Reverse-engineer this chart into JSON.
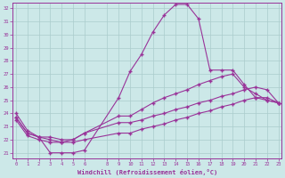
{
  "background_color": "#cce8e8",
  "grid_color": "#aacccc",
  "line_color": "#993399",
  "xlabel": "Windchill (Refroidissement éolien,°C)",
  "xlabel_color": "#993399",
  "tick_color": "#993399",
  "xticks": [
    0,
    1,
    2,
    3,
    4,
    5,
    6,
    8,
    9,
    10,
    11,
    12,
    13,
    14,
    15,
    16,
    17,
    18,
    19,
    20,
    21,
    22,
    23
  ],
  "yticks": [
    21,
    22,
    23,
    24,
    25,
    26,
    27,
    28,
    29,
    30,
    31,
    32
  ],
  "xlim": [
    -0.3,
    23.3
  ],
  "ylim": [
    20.6,
    32.4
  ],
  "line1_x": [
    0,
    1,
    2,
    3,
    4,
    5,
    6,
    9,
    10,
    11,
    12,
    13,
    14,
    15,
    16,
    17,
    18,
    19,
    20,
    21,
    22,
    23
  ],
  "line1_y": [
    24.0,
    22.7,
    22.2,
    21.0,
    21.0,
    21.0,
    21.2,
    25.2,
    27.2,
    28.5,
    30.2,
    31.5,
    32.3,
    32.3,
    31.2,
    27.3,
    27.3,
    27.3,
    26.2,
    25.2,
    25.0,
    24.8
  ],
  "line2_x": [
    0,
    1,
    2,
    3,
    4,
    5,
    6,
    9,
    10,
    11,
    12,
    13,
    14,
    15,
    16,
    17,
    18,
    19,
    20,
    21,
    22,
    23
  ],
  "line2_y": [
    23.7,
    22.5,
    22.2,
    22.0,
    21.8,
    22.0,
    22.5,
    23.8,
    23.8,
    24.3,
    24.8,
    25.2,
    25.5,
    25.8,
    26.2,
    26.5,
    26.8,
    27.0,
    26.0,
    25.5,
    25.0,
    24.8
  ],
  "line3_x": [
    0,
    1,
    2,
    3,
    4,
    5,
    6,
    9,
    10,
    11,
    12,
    13,
    14,
    15,
    16,
    17,
    18,
    19,
    20,
    21,
    22,
    23
  ],
  "line3_y": [
    23.7,
    22.5,
    22.2,
    22.2,
    22.0,
    22.0,
    22.5,
    23.3,
    23.3,
    23.5,
    23.8,
    24.0,
    24.3,
    24.5,
    24.8,
    25.0,
    25.3,
    25.5,
    25.8,
    26.0,
    25.8,
    24.8
  ],
  "line4_x": [
    0,
    1,
    2,
    3,
    4,
    5,
    6,
    9,
    10,
    11,
    12,
    13,
    14,
    15,
    16,
    17,
    18,
    19,
    20,
    21,
    22,
    23
  ],
  "line4_y": [
    23.5,
    22.3,
    22.0,
    21.8,
    21.8,
    21.8,
    22.0,
    22.5,
    22.5,
    22.8,
    23.0,
    23.2,
    23.5,
    23.7,
    24.0,
    24.2,
    24.5,
    24.7,
    25.0,
    25.2,
    25.2,
    24.8
  ]
}
